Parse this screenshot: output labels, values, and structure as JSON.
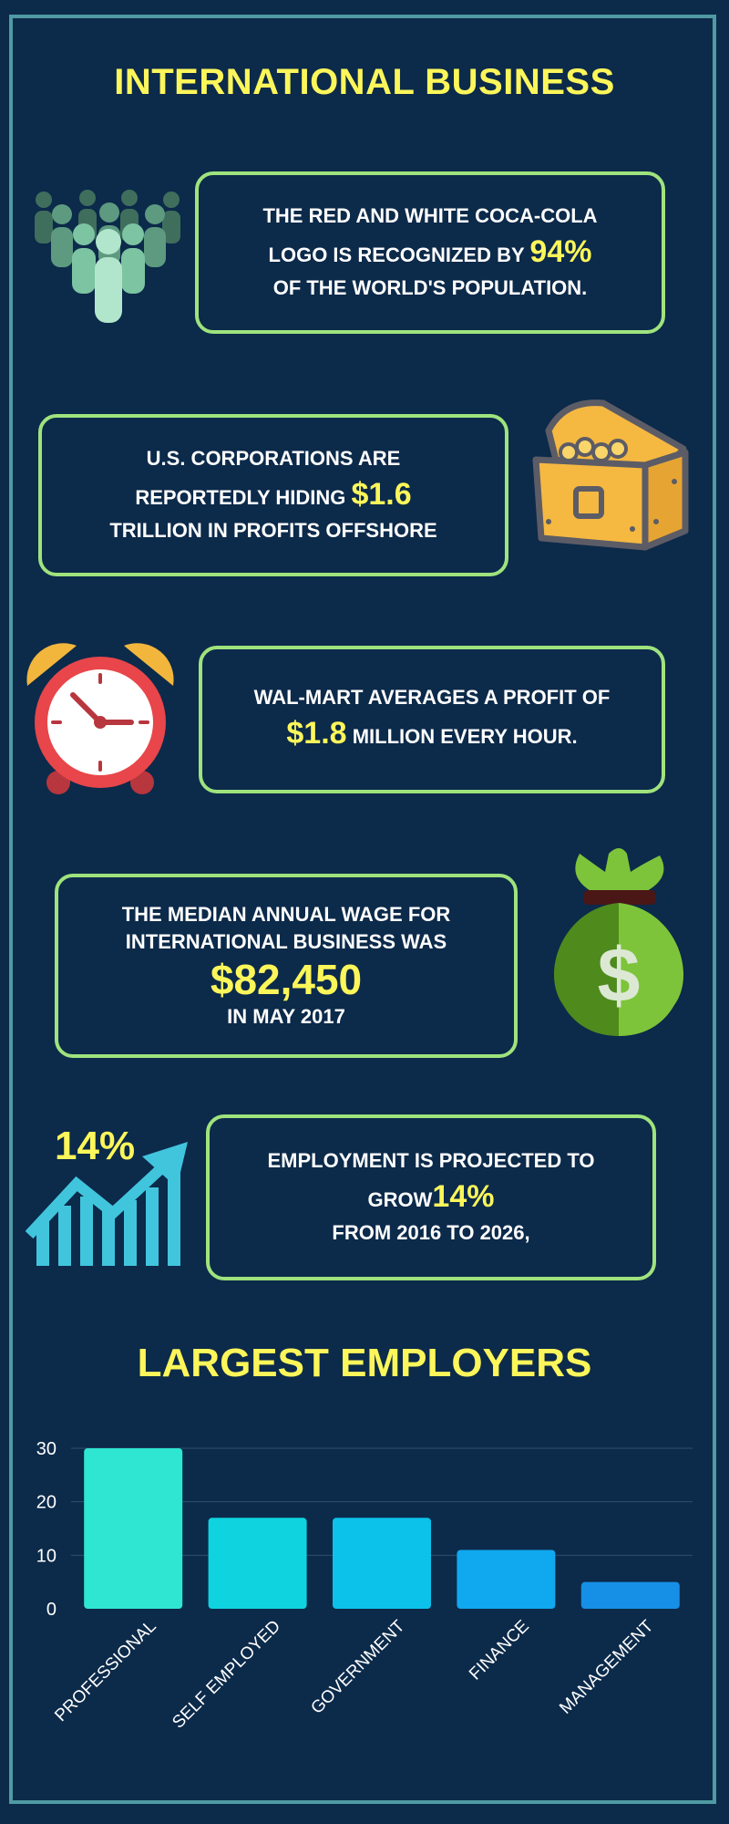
{
  "title": "INTERNATIONAL BUSINESS",
  "fact1": {
    "line1": "THE RED AND WHITE COCA-COLA",
    "line2a": "LOGO IS RECOGNIZED BY",
    "value": "94%",
    "line3": "OF THE WORLD'S POPULATION."
  },
  "fact2": {
    "line1": "U.S. CORPORATIONS ARE",
    "line2a": "REPORTEDLY HIDING",
    "value": "$1.6",
    "line3": "TRILLION IN PROFITS OFFSHORE"
  },
  "fact3": {
    "line1": "WAL-MART AVERAGES A PROFIT OF",
    "value": "$1.8",
    "line2b": "MILLION EVERY HOUR."
  },
  "fact4": {
    "line1": "THE MEDIAN ANNUAL WAGE FOR",
    "line2": "INTERNATIONAL BUSINESS WAS",
    "value": "$82,450",
    "line3": "IN MAY 2017"
  },
  "fact5": {
    "line1": "EMPLOYMENT IS PROJECTED TO",
    "line2a": "GROW",
    "value": "14%",
    "line3": "FROM 2016 TO 2026,",
    "icon_label": "14%"
  },
  "icons": {
    "people": "people-group-icon",
    "chest": "treasure-chest-icon",
    "clock": "alarm-clock-icon",
    "bag": "money-bag-icon",
    "growth": "growth-chart-icon"
  },
  "colors": {
    "background": "#0c2a4a",
    "accent": "#fcf65a",
    "border": "#9fe37d",
    "frame": "#4f9aa3"
  },
  "chart_data": {
    "type": "bar",
    "title": "LARGEST EMPLOYERS",
    "categories": [
      "PROFESSIONAL",
      "SELF EMPLOYED",
      "GOVERNMENT",
      "FINANCE",
      "MANAGEMENT"
    ],
    "values": [
      30,
      17,
      17,
      11,
      5
    ],
    "yticks": [
      0,
      10,
      20,
      30
    ],
    "ylim": [
      0,
      30
    ],
    "colors": [
      "#2ee6d2",
      "#10d3e0",
      "#0cc2ea",
      "#10a8ee",
      "#1590e6"
    ],
    "grid": true
  }
}
